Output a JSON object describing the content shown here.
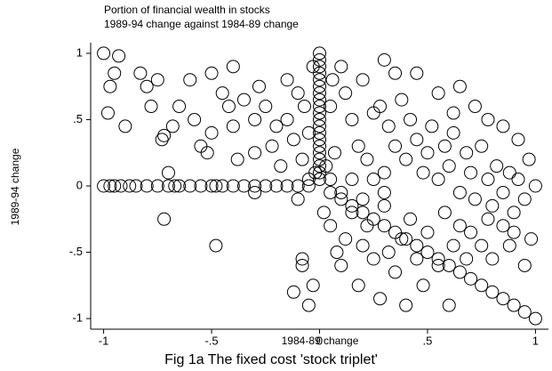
{
  "chart_data": {
    "type": "scatter",
    "title": "Portion of financial wealth in stocks",
    "subtitle": "1989-94 change against 1984-89 change",
    "x_label": "1984-89 change",
    "y_label": "1989-94 change",
    "caption": "Fig 1a The fixed cost 'stock triplet'",
    "color": "#000000",
    "xlim": [
      -1.06,
      1.06
    ],
    "ylim": [
      -1.08,
      1.08
    ],
    "xticks": [
      -1,
      {
        "value": -0.5,
        "label": "-.5"
      },
      0,
      {
        "value": 0.5,
        "label": ".5"
      },
      1
    ],
    "yticks": [
      -1,
      {
        "value": -0.5,
        "label": "-.5"
      },
      0,
      {
        "value": 0.5,
        "label": ".5"
      },
      1
    ],
    "x": [
      0,
      0,
      0,
      0,
      0,
      0,
      0,
      0,
      0,
      0,
      0,
      0,
      0,
      0,
      0,
      0,
      0,
      0,
      0,
      0,
      -1,
      -0.97,
      -0.95,
      -0.92,
      -0.88,
      -0.85,
      -0.8,
      -0.75,
      -0.7,
      -0.67,
      -0.65,
      -0.6,
      -0.55,
      -0.5,
      -0.48,
      -0.45,
      -0.4,
      -0.35,
      -0.3,
      -0.25,
      -0.2,
      -0.15,
      -0.1,
      -0.05,
      0.05,
      0.1,
      0.15,
      0.2,
      0.25,
      0.3,
      0.35,
      0.4,
      0.45,
      0.5,
      0.55,
      0.6,
      0.65,
      0.7,
      0.75,
      0.8,
      0.85,
      0.9,
      0.95,
      1,
      -1,
      -0.93,
      -0.95,
      -0.97,
      -0.98,
      -0.9,
      -0.83,
      -0.8,
      -0.78,
      -0.75,
      -0.73,
      -0.72,
      -0.7,
      -0.68,
      -0.65,
      -0.6,
      -0.58,
      -0.55,
      -0.52,
      -0.5,
      -0.5,
      -0.45,
      -0.42,
      -0.4,
      -0.4,
      -0.38,
      -0.35,
      -0.3,
      -0.3,
      -0.28,
      -0.25,
      -0.22,
      -0.2,
      -0.18,
      -0.15,
      -0.12,
      -0.1,
      -0.08,
      -0.05,
      -0.03,
      -0.72,
      -0.48,
      -0.3,
      -0.1,
      0.1,
      0.12,
      0.15,
      0.18,
      0.2,
      0.22,
      0.25,
      0.28,
      0.3,
      0.32,
      0.35,
      0.38,
      0.4,
      0.42,
      0.45,
      0.48,
      0.5,
      0.52,
      0.55,
      0.58,
      0.6,
      0.62,
      0.65,
      0.68,
      0.7,
      0.72,
      0.75,
      0.78,
      0.8,
      0.82,
      0.85,
      0.88,
      0.9,
      0.92,
      0.95,
      0.98,
      1,
      0.05,
      0.08,
      0.1,
      0.12,
      0.15,
      0.18,
      0.2,
      0.22,
      0.25,
      0.28,
      0.3,
      0.32,
      0.35,
      0.38,
      0.4,
      0.42,
      0.45,
      0.48,
      0.5,
      0.55,
      0.58,
      0.6,
      0.62,
      0.65,
      0.68,
      0.7,
      0.75,
      0.78,
      0.8,
      0.85,
      0.88,
      0.9,
      0.95,
      -0.08,
      -0.08,
      -0.12,
      -0.05,
      -0.03,
      0.02,
      0.03,
      -0.02,
      0.05,
      0.07,
      -0.05,
      0.1,
      0.15,
      0.2,
      0.25,
      0.3,
      0.05,
      0.06,
      -0.07,
      -0.15,
      0.3,
      0.35,
      0.55,
      0.45,
      0.62,
      0.72,
      0.78,
      0.85,
      0.92,
      0.97,
      0.65
    ],
    "y": [
      0.05,
      0.1,
      0.15,
      0.2,
      0.25,
      0.3,
      0.35,
      0.4,
      0.45,
      0.5,
      0.55,
      0.6,
      0.65,
      0.7,
      0.75,
      0.8,
      0.85,
      0.9,
      0.95,
      1,
      0,
      0,
      0,
      0,
      0,
      0,
      0,
      0,
      0,
      0,
      0,
      0,
      0,
      0,
      0,
      0,
      0,
      0,
      0,
      0,
      0,
      0,
      0,
      0,
      -0.05,
      -0.1,
      -0.15,
      -0.2,
      -0.25,
      -0.3,
      -0.35,
      -0.4,
      -0.45,
      -0.5,
      -0.55,
      -0.6,
      -0.65,
      -0.7,
      -0.75,
      -0.8,
      -0.85,
      -0.9,
      -0.95,
      -1,
      1,
      0.98,
      0.85,
      0.75,
      0.55,
      0.45,
      0.85,
      0.75,
      0.6,
      0.8,
      0.35,
      0.38,
      0.1,
      0.45,
      0.6,
      0.8,
      0.5,
      0.3,
      0.25,
      0.4,
      0.85,
      0.7,
      0.6,
      0.9,
      0.45,
      0.2,
      0.65,
      0.5,
      0.25,
      0.75,
      0.6,
      0.3,
      0.45,
      0.15,
      0.5,
      0.35,
      0.7,
      0.2,
      0.4,
      0.9,
      -0.25,
      -0.45,
      -0.05,
      -0.1,
      0.9,
      0.7,
      0.5,
      0.3,
      0.8,
      0.2,
      0.55,
      0.6,
      0.1,
      0.45,
      0.3,
      0.65,
      0.2,
      0.5,
      0.35,
      0.1,
      0.25,
      0.45,
      0.05,
      0.3,
      0.15,
      0.4,
      -0.05,
      0.25,
      0.1,
      -0.1,
      0.3,
      0.05,
      -0.15,
      0.15,
      -0.05,
      0.1,
      -0.2,
      0.05,
      -0.1,
      -0.4,
      0,
      -0.3,
      -0.5,
      -0.6,
      -0.4,
      -0.2,
      -0.75,
      -0.45,
      -0.3,
      -0.55,
      -0.85,
      -0.15,
      -0.5,
      -0.65,
      -0.4,
      -0.9,
      -0.25,
      -0.55,
      -0.75,
      -0.35,
      -0.6,
      -0.2,
      -0.9,
      -0.45,
      -0.3,
      -0.55,
      -0.35,
      -0.45,
      -0.25,
      -0.55,
      -0.3,
      -0.45,
      -0.35,
      -0.6,
      -0.55,
      -0.6,
      -0.8,
      -0.9,
      -0.75,
      -0.2,
      0.15,
      0.1,
      0.05,
      0.25,
      0.05,
      -0.05,
      0.05,
      -0.1,
      0.05,
      -0.05,
      0.6,
      0.8,
      0.6,
      0.8,
      0.95,
      0.85,
      0.7,
      0.85,
      0.55,
      0.6,
      0.5,
      0.45,
      0.35,
      0.2,
      0.75
    ]
  }
}
